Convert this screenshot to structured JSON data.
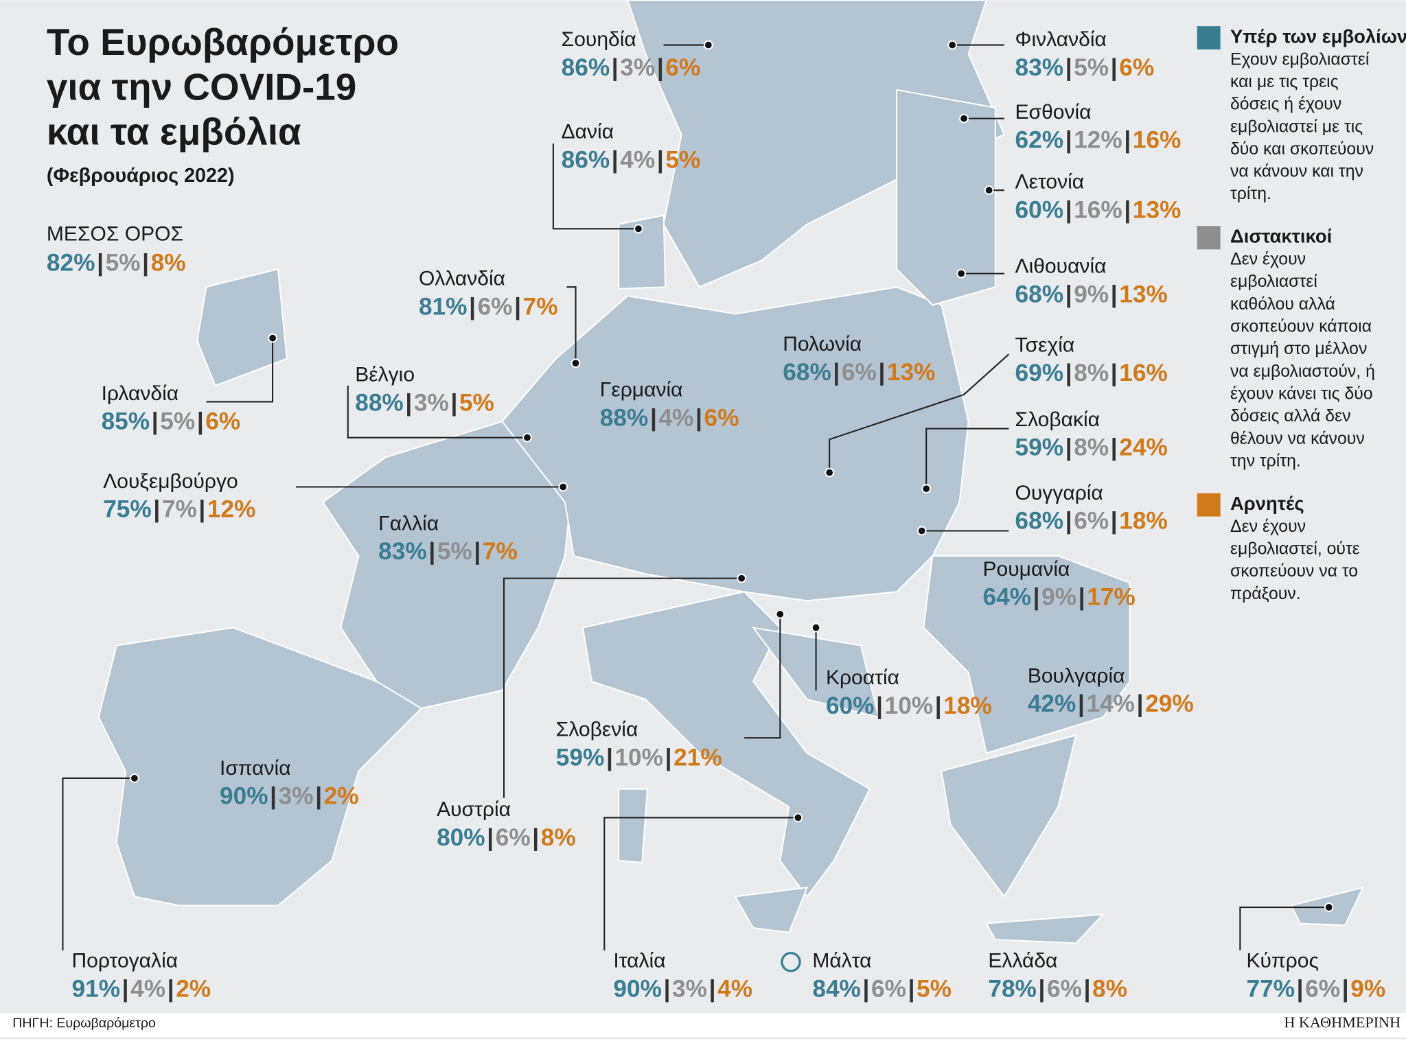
{
  "title": [
    "Το Ευρωβαρόμετρο",
    "για την COVID-19",
    "και τα εμβόλια"
  ],
  "subtitle": "(Φεβρουάριος 2022)",
  "separator": "|",
  "average": {
    "label": "ΜΕΣΟΣ ΟΡΟΣ",
    "values": [
      "82%",
      "5%",
      "8%"
    ]
  },
  "countries": [
    {
      "name": "Σουηδία",
      "values": [
        "86%",
        "3%",
        "6%"
      ]
    },
    {
      "name": "Δανία",
      "values": [
        "86%",
        "4%",
        "5%"
      ]
    },
    {
      "name": "Φινλανδία",
      "values": [
        "83%",
        "5%",
        "6%"
      ]
    },
    {
      "name": "Εσθονία",
      "values": [
        "62%",
        "12%",
        "16%"
      ]
    },
    {
      "name": "Λετονία",
      "values": [
        "60%",
        "16%",
        "13%"
      ]
    },
    {
      "name": "Λιθουανία",
      "values": [
        "68%",
        "9%",
        "13%"
      ]
    },
    {
      "name": "Πολωνία",
      "values": [
        "68%",
        "6%",
        "13%"
      ]
    },
    {
      "name": "Τσεχία",
      "values": [
        "69%",
        "8%",
        "16%"
      ]
    },
    {
      "name": "Σλοβακία",
      "values": [
        "59%",
        "8%",
        "24%"
      ]
    },
    {
      "name": "Ουγγαρία",
      "values": [
        "68%",
        "6%",
        "18%"
      ]
    },
    {
      "name": "Ρουμανία",
      "values": [
        "64%",
        "9%",
        "17%"
      ]
    },
    {
      "name": "Βουλγαρία",
      "values": [
        "42%",
        "14%",
        "29%"
      ]
    },
    {
      "name": "Κροατία",
      "values": [
        "60%",
        "10%",
        "18%"
      ]
    },
    {
      "name": "Σλοβενία",
      "values": [
        "59%",
        "10%",
        "21%"
      ]
    },
    {
      "name": "Αυστρία",
      "values": [
        "80%",
        "6%",
        "8%"
      ]
    },
    {
      "name": "Ιταλία",
      "values": [
        "90%",
        "3%",
        "4%"
      ]
    },
    {
      "name": "Μάλτα",
      "values": [
        "84%",
        "6%",
        "5%"
      ]
    },
    {
      "name": "Ελλάδα",
      "values": [
        "78%",
        "6%",
        "8%"
      ]
    },
    {
      "name": "Κύπρος",
      "values": [
        "77%",
        "6%",
        "9%"
      ]
    },
    {
      "name": "Πορτογαλία",
      "values": [
        "91%",
        "4%",
        "2%"
      ]
    },
    {
      "name": "Ισπανία",
      "values": [
        "90%",
        "3%",
        "2%"
      ]
    },
    {
      "name": "Γαλλία",
      "values": [
        "83%",
        "5%",
        "7%"
      ]
    },
    {
      "name": "Λουξεμβούργο",
      "values": [
        "75%",
        "7%",
        "12%"
      ]
    },
    {
      "name": "Βέλγιο",
      "values": [
        "88%",
        "3%",
        "5%"
      ]
    },
    {
      "name": "Ολλανδία",
      "values": [
        "81%",
        "6%",
        "7%"
      ]
    },
    {
      "name": "Γερμανία",
      "values": [
        "88%",
        "4%",
        "6%"
      ]
    },
    {
      "name": "Ιρλανδία",
      "values": [
        "85%",
        "5%",
        "6%"
      ]
    }
  ],
  "legend": [
    {
      "title": "Υπέρ των εμβολίων",
      "lines": [
        "Εχουν εμβολιαστεί",
        "και με τις τρεις",
        "δόσεις ή έχουν",
        "εμβολιαστεί με τις",
        "δύο και σκοπεύουν",
        "να κάνουν και την",
        "τρίτη."
      ]
    },
    {
      "title": "Διστακτικοί",
      "lines": [
        "Δεν έχουν",
        "εμβολιαστεί",
        "καθόλου αλλά",
        "σκοπεύουν κάποια",
        "στιγμή στο μέλλον",
        "να εμβολιαστούν, ή",
        "έχουν κάνει τις δύο",
        "δόσεις αλλά δεν",
        "θέλουν να κάνουν",
        "την τρίτη."
      ]
    },
    {
      "title": "Αρνητές",
      "lines": [
        "Δεν έχουν",
        "εμβολιαστεί, ούτε",
        "σκοπεύουν να το",
        "πράξουν."
      ]
    }
  ],
  "source": "ΠΗΓΗ: Ευρωβαρόμετρο",
  "brand": "Η ΚΑΘΗΜΕΡΙΝΗ"
}
